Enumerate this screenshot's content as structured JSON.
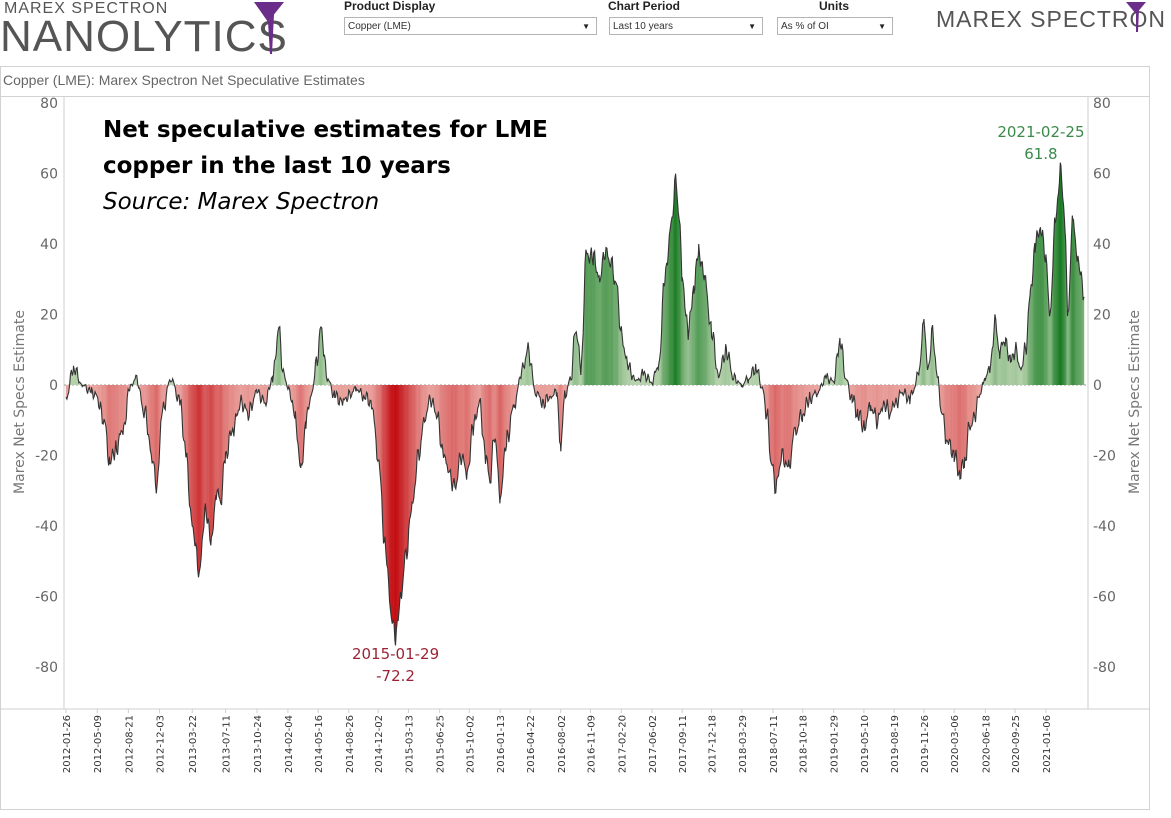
{
  "header": {
    "brand_small": "MAREX SPECTRON",
    "brand_big": "NANOLYTICS",
    "brand_right": "MAREX SPECTRON",
    "product_label": "Product Display",
    "product_value": "Copper (LME)",
    "period_label": "Chart Period",
    "period_value": "Last 10 years",
    "units_label": "Units",
    "units_value": "As % of OI",
    "accent_color": "#6b2d8a"
  },
  "panel": {
    "title": "Copper (LME): Marex Spectron Net Speculative Estimates"
  },
  "annotation": {
    "line1": "Net speculative estimates for LME",
    "line2": "copper in the last 10 years",
    "line3": "Source: Marex Spectron"
  },
  "chart_data": {
    "type": "area",
    "title": "Copper (LME): Marex Spectron Net Speculative Estimates",
    "ylabel": "Marex Net Specs Estimate",
    "ylim": [
      -90,
      80
    ],
    "yticks": [
      80,
      60,
      40,
      20,
      0,
      -20,
      -40,
      -60,
      -80
    ],
    "xlim": [
      "2012-01-26",
      "2021-05-13"
    ],
    "xticks": [
      "2012-01-26",
      "2012-05-09",
      "2012-08-21",
      "2012-12-03",
      "2013-03-22",
      "2013-07-11",
      "2013-10-24",
      "2014-02-04",
      "2014-05-16",
      "2014-08-26",
      "2014-12-02",
      "2015-03-13",
      "2015-06-25",
      "2015-10-02",
      "2016-01-13",
      "2016-04-22",
      "2016-08-02",
      "2016-11-09",
      "2017-02-20",
      "2017-06-02",
      "2017-09-11",
      "2017-12-18",
      "2018-03-29",
      "2018-07-11",
      "2018-10-18",
      "2019-01-29",
      "2019-05-10",
      "2019-08-19",
      "2019-11-26",
      "2020-03-06",
      "2020-06-18",
      "2020-09-25",
      "2021-01-06"
    ],
    "positive_color": "#1e7a2e",
    "negative_color": "#c8102e",
    "max_label": {
      "date": "2021-02-25",
      "value": 61.8,
      "color": "#3a8a4a"
    },
    "min_label": {
      "date": "2015-01-29",
      "value": -72.2,
      "color": "#9b2335"
    },
    "grid": false,
    "legend": "none",
    "series": [
      {
        "points": [
          [
            "2012-01-26",
            -4
          ],
          [
            "2012-02-20",
            5
          ],
          [
            "2012-03-20",
            0
          ],
          [
            "2012-04-20",
            -2
          ],
          [
            "2012-05-05",
            -3
          ],
          [
            "2012-06-01",
            -10
          ],
          [
            "2012-06-20",
            -22
          ],
          [
            "2012-07-10",
            -18
          ],
          [
            "2012-08-05",
            -12
          ],
          [
            "2012-08-25",
            -1
          ],
          [
            "2012-09-15",
            2
          ],
          [
            "2012-10-15",
            -8
          ],
          [
            "2012-11-10",
            -22
          ],
          [
            "2012-11-25",
            -29
          ],
          [
            "2012-12-10",
            -8
          ],
          [
            "2013-01-10",
            2
          ],
          [
            "2013-02-10",
            -5
          ],
          [
            "2013-03-01",
            -20
          ],
          [
            "2013-03-22",
            -40
          ],
          [
            "2013-04-15",
            -53
          ],
          [
            "2013-05-05",
            -35
          ],
          [
            "2013-05-25",
            -45
          ],
          [
            "2013-06-10",
            -30
          ],
          [
            "2013-06-25",
            -33
          ],
          [
            "2013-07-11",
            -20
          ],
          [
            "2013-08-05",
            -12
          ],
          [
            "2013-09-01",
            -5
          ],
          [
            "2013-09-25",
            -8
          ],
          [
            "2013-10-24",
            -2
          ],
          [
            "2013-11-20",
            -5
          ],
          [
            "2013-12-15",
            2
          ],
          [
            "2014-01-05",
            16
          ],
          [
            "2014-01-20",
            3
          ],
          [
            "2014-02-10",
            -2
          ],
          [
            "2014-03-01",
            -10
          ],
          [
            "2014-03-20",
            -25
          ],
          [
            "2014-04-05",
            -10
          ],
          [
            "2014-04-25",
            -2
          ],
          [
            "2014-05-10",
            6
          ],
          [
            "2014-05-25",
            16
          ],
          [
            "2014-06-15",
            2
          ],
          [
            "2014-07-10",
            -3
          ],
          [
            "2014-08-05",
            -5
          ],
          [
            "2014-08-26",
            -3
          ],
          [
            "2014-09-20",
            -1
          ],
          [
            "2014-10-15",
            -3
          ],
          [
            "2014-11-10",
            -5
          ],
          [
            "2014-12-02",
            -20
          ],
          [
            "2014-12-25",
            -45
          ],
          [
            "2015-01-15",
            -65
          ],
          [
            "2015-01-29",
            -72.2
          ],
          [
            "2015-02-15",
            -60
          ],
          [
            "2015-03-05",
            -48
          ],
          [
            "2015-03-25",
            -35
          ],
          [
            "2015-04-15",
            -20
          ],
          [
            "2015-05-10",
            -8
          ],
          [
            "2015-05-25",
            -4
          ],
          [
            "2015-06-15",
            -8
          ],
          [
            "2015-07-05",
            -18
          ],
          [
            "2015-07-25",
            -25
          ],
          [
            "2015-08-15",
            -29
          ],
          [
            "2015-09-05",
            -20
          ],
          [
            "2015-09-25",
            -25
          ],
          [
            "2015-10-15",
            -12
          ],
          [
            "2015-11-05",
            -5
          ],
          [
            "2015-11-25",
            -20
          ],
          [
            "2015-12-10",
            -27
          ],
          [
            "2015-12-25",
            -14
          ],
          [
            "2016-01-13",
            -31
          ],
          [
            "2016-02-05",
            -15
          ],
          [
            "2016-03-01",
            -5
          ],
          [
            "2016-03-25",
            4
          ],
          [
            "2016-04-15",
            10
          ],
          [
            "2016-05-10",
            -2
          ],
          [
            "2016-06-05",
            -5
          ],
          [
            "2016-07-01",
            -3
          ],
          [
            "2016-07-20",
            -2
          ],
          [
            "2016-08-02",
            -18
          ],
          [
            "2016-08-15",
            -3
          ],
          [
            "2016-09-05",
            2
          ],
          [
            "2016-09-20",
            16
          ],
          [
            "2016-10-10",
            5
          ],
          [
            "2016-10-25",
            37
          ],
          [
            "2016-11-20",
            36
          ],
          [
            "2016-12-10",
            30
          ],
          [
            "2016-12-28",
            38
          ],
          [
            "2017-01-15",
            35
          ],
          [
            "2017-02-05",
            28
          ],
          [
            "2017-02-20",
            14
          ],
          [
            "2017-03-15",
            5
          ],
          [
            "2017-04-10",
            1
          ],
          [
            "2017-05-05",
            3
          ],
          [
            "2017-06-02",
            1
          ],
          [
            "2017-06-25",
            6
          ],
          [
            "2017-07-15",
            30
          ],
          [
            "2017-08-05",
            45
          ],
          [
            "2017-08-20",
            58
          ],
          [
            "2017-09-01",
            48
          ],
          [
            "2017-09-11",
            30
          ],
          [
            "2017-10-01",
            15
          ],
          [
            "2017-10-20",
            28
          ],
          [
            "2017-11-05",
            38
          ],
          [
            "2017-11-25",
            30
          ],
          [
            "2017-12-18",
            15
          ],
          [
            "2018-01-10",
            3
          ],
          [
            "2018-02-05",
            10
          ],
          [
            "2018-03-01",
            2
          ],
          [
            "2018-03-29",
            0
          ],
          [
            "2018-04-20",
            2
          ],
          [
            "2018-05-15",
            5
          ],
          [
            "2018-06-05",
            -1
          ],
          [
            "2018-06-20",
            -8
          ],
          [
            "2018-07-05",
            -22
          ],
          [
            "2018-07-20",
            -29
          ],
          [
            "2018-08-10",
            -20
          ],
          [
            "2018-09-01",
            -24
          ],
          [
            "2018-09-20",
            -14
          ],
          [
            "2018-10-18",
            -8
          ],
          [
            "2018-11-10",
            -4
          ],
          [
            "2018-12-05",
            -2
          ],
          [
            "2019-01-05",
            2
          ],
          [
            "2019-01-29",
            1
          ],
          [
            "2019-02-20",
            13
          ],
          [
            "2019-03-10",
            2
          ],
          [
            "2019-04-01",
            -4
          ],
          [
            "2019-04-20",
            -8
          ],
          [
            "2019-05-10",
            -12
          ],
          [
            "2019-06-01",
            -6
          ],
          [
            "2019-06-25",
            -10
          ],
          [
            "2019-07-15",
            -5
          ],
          [
            "2019-08-05",
            -8
          ],
          [
            "2019-08-19",
            -6
          ],
          [
            "2019-09-15",
            -2
          ],
          [
            "2019-10-10",
            -4
          ],
          [
            "2019-10-25",
            -1
          ],
          [
            "2019-11-10",
            5
          ],
          [
            "2019-11-26",
            17
          ],
          [
            "2019-12-10",
            5
          ],
          [
            "2019-12-25",
            15
          ],
          [
            "2020-01-10",
            2
          ],
          [
            "2020-01-25",
            -8
          ],
          [
            "2020-02-10",
            -15
          ],
          [
            "2020-02-25",
            -18
          ],
          [
            "2020-03-06",
            -20
          ],
          [
            "2020-03-25",
            -25
          ],
          [
            "2020-04-10",
            -22
          ],
          [
            "2020-04-25",
            -12
          ],
          [
            "2020-05-10",
            -10
          ],
          [
            "2020-05-25",
            -4
          ],
          [
            "2020-06-10",
            0
          ],
          [
            "2020-06-18",
            2
          ],
          [
            "2020-07-05",
            5
          ],
          [
            "2020-07-20",
            18
          ],
          [
            "2020-08-05",
            10
          ],
          [
            "2020-08-25",
            13
          ],
          [
            "2020-09-10",
            6
          ],
          [
            "2020-09-25",
            10
          ],
          [
            "2020-10-15",
            5
          ],
          [
            "2020-10-30",
            10
          ],
          [
            "2020-11-15",
            25
          ],
          [
            "2020-12-01",
            40
          ],
          [
            "2020-12-20",
            45
          ],
          [
            "2021-01-06",
            35
          ],
          [
            "2021-01-20",
            20
          ],
          [
            "2021-02-05",
            45
          ],
          [
            "2021-02-25",
            61.8
          ],
          [
            "2021-03-10",
            45
          ],
          [
            "2021-03-20",
            20
          ],
          [
            "2021-04-05",
            46
          ],
          [
            "2021-04-25",
            35
          ],
          [
            "2021-05-13",
            25
          ]
        ]
      }
    ]
  }
}
